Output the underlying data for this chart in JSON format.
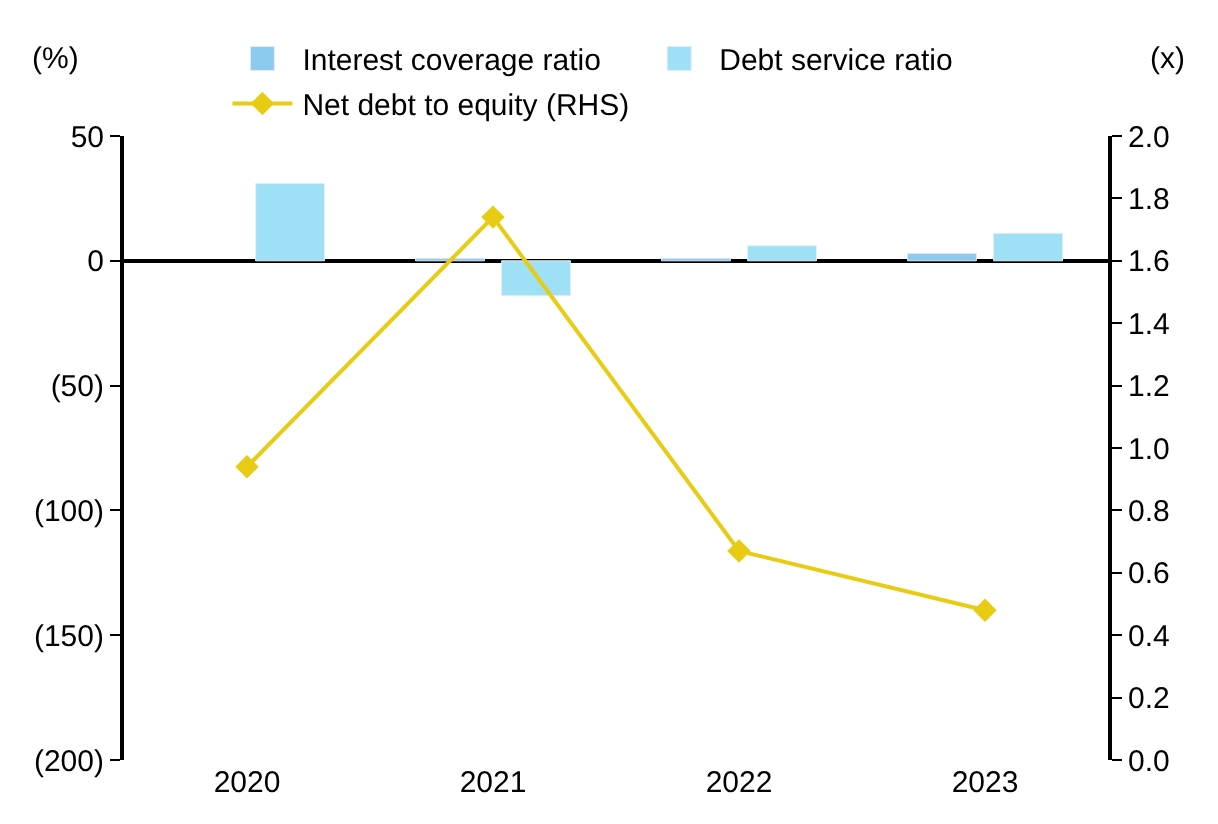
{
  "chart_data": {
    "type": "bar",
    "categories": [
      "2020",
      "2021",
      "2022",
      "2023"
    ],
    "ylabel": "(%)",
    "y2label": "(x)",
    "series": [
      {
        "name": "Interest coverage ratio",
        "color": "#8ccbee",
        "values": [
          null,
          1,
          1,
          3
        ]
      },
      {
        "name": "Debt service ratio",
        "color": "#9ee0f5",
        "values": [
          31,
          -14,
          6,
          11
        ]
      },
      {
        "name": "Net debt to equity (RHS)",
        "type": "line",
        "axis": "y2",
        "color": "#e8cc14",
        "marker": "diamond",
        "values": [
          0.94,
          1.74,
          0.67,
          0.48
        ]
      }
    ],
    "ylim": [
      -200,
      50
    ],
    "yticks": [
      50,
      0,
      {
        "value": -50,
        "label": "(50)"
      },
      {
        "value": -100,
        "label": "(100)"
      },
      {
        "value": -150,
        "label": "(150)"
      },
      {
        "value": -200,
        "label": "(200)"
      }
    ],
    "y2lim": [
      0,
      2
    ],
    "y2ticks": [
      {
        "value": 0,
        "label": "0.0"
      },
      {
        "value": 0.2,
        "label": "0.2"
      },
      {
        "value": 0.4,
        "label": "0.4"
      },
      {
        "value": 0.6,
        "label": "0.6"
      },
      {
        "value": 0.8,
        "label": "0.8"
      },
      {
        "value": 1,
        "label": "1.0"
      },
      {
        "value": 1.2,
        "label": "1.2"
      },
      {
        "value": 1.4,
        "label": "1.4"
      },
      {
        "value": 1.6,
        "label": "1.6"
      },
      {
        "value": 1.8,
        "label": "1.8"
      },
      {
        "value": 2,
        "label": "2.0"
      }
    ],
    "legend": "top"
  }
}
